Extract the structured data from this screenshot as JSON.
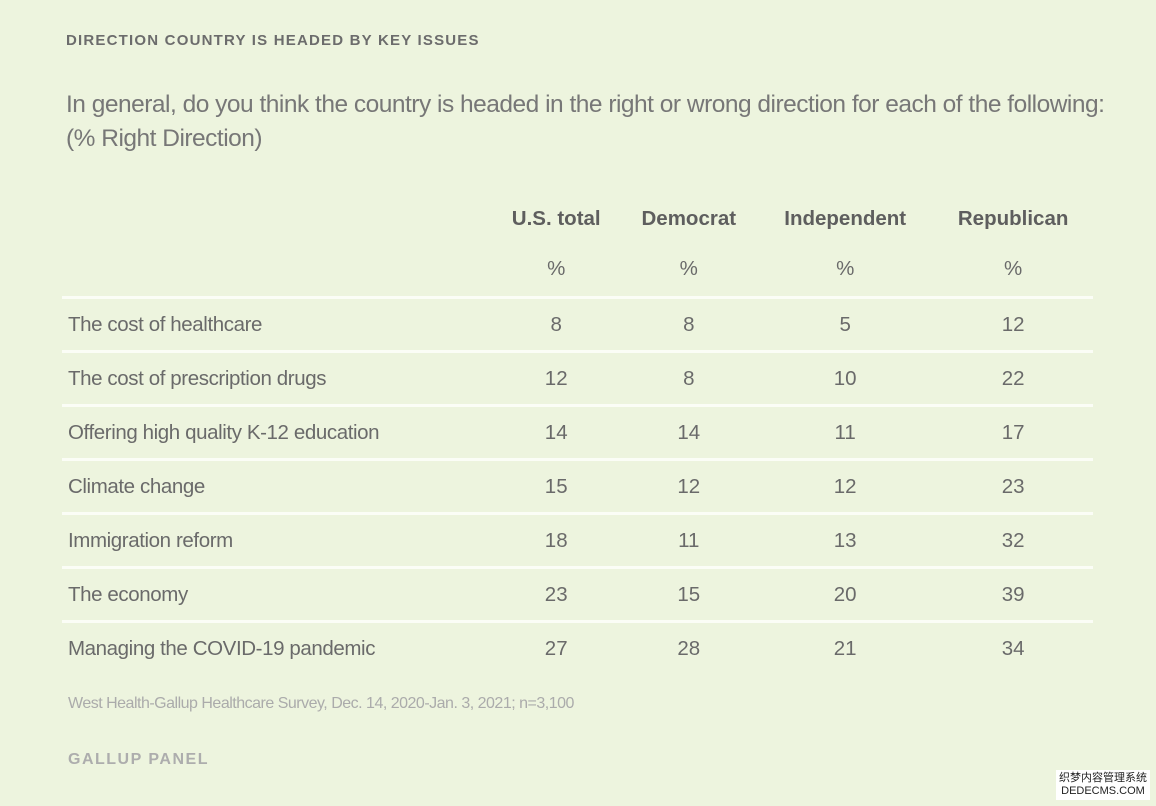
{
  "title": "DIRECTION COUNTRY IS HEADED BY KEY ISSUES",
  "question": "In general, do you think the country is headed in the right or wrong direction for each of the following: (% Right Direction)",
  "chart_data": {
    "type": "table",
    "columns": [
      "U.S. total",
      "Democrat",
      "Independent",
      "Republican"
    ],
    "units": [
      "%",
      "%",
      "%",
      "%"
    ],
    "rows": [
      {
        "label": "The cost of healthcare",
        "values": [
          8,
          8,
          5,
          12
        ]
      },
      {
        "label": "The cost of prescription drugs",
        "values": [
          12,
          8,
          10,
          22
        ]
      },
      {
        "label": "Offering high quality K-12 education",
        "values": [
          14,
          14,
          11,
          17
        ]
      },
      {
        "label": "Climate change",
        "values": [
          15,
          12,
          12,
          23
        ]
      },
      {
        "label": "Immigration reform",
        "values": [
          18,
          11,
          13,
          32
        ]
      },
      {
        "label": "The economy",
        "values": [
          23,
          15,
          20,
          39
        ]
      },
      {
        "label": "Managing the COVID-19 pandemic",
        "values": [
          27,
          28,
          21,
          34
        ]
      }
    ]
  },
  "footnote": "West Health-Gallup Healthcare Survey, Dec. 14, 2020-Jan. 3, 2021; n=3,100",
  "source": "GALLUP PANEL",
  "watermark": {
    "line1": "织梦内容管理系统",
    "line2": "DEDECMS.COM"
  }
}
